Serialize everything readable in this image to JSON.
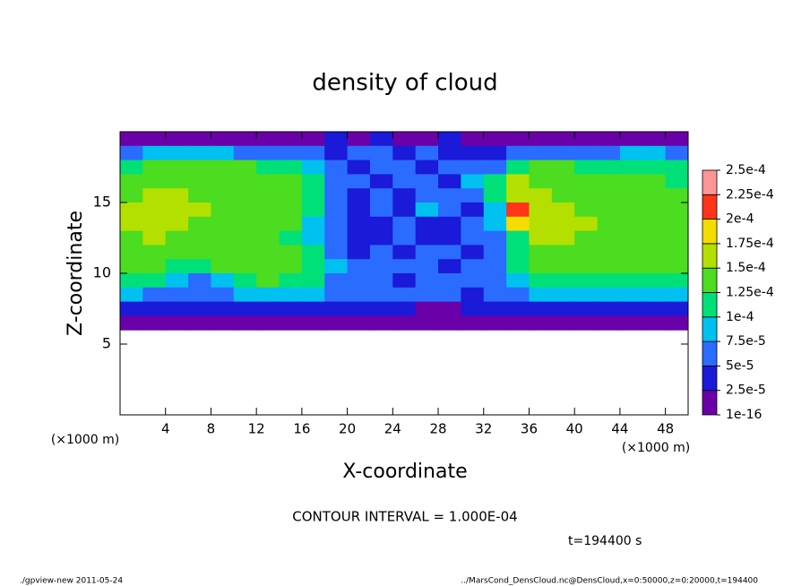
{
  "chart_data": {
    "type": "heatmap",
    "title": "density of cloud",
    "xlabel": "X-coordinate",
    "ylabel": "Z-coordinate",
    "x_unit": "(×1000 m)",
    "y_unit": "(×1000 m)",
    "annotation": "CONTOUR INTERVAL = 1.000E-04",
    "time_label": "t=194400 s",
    "footer_left": "./gpview-new  2011-05-24",
    "footer_right": "../MarsCond_DensCloud.nc@DensCloud,x=0:50000,z=0:20000,t=194400",
    "xlim": [
      0,
      50
    ],
    "ylim": [
      0,
      20
    ],
    "xticks": [
      4,
      8,
      12,
      16,
      20,
      24,
      28,
      32,
      36,
      40,
      44,
      48
    ],
    "yticks": [
      5,
      10,
      15
    ],
    "x": [
      1,
      3,
      5,
      7,
      9,
      11,
      13,
      15,
      17,
      19,
      21,
      23,
      25,
      27,
      29,
      31,
      33,
      35,
      37,
      39,
      41,
      43,
      45,
      47,
      49
    ],
    "z": [
      19.5,
      18.5,
      17.5,
      16.5,
      15.5,
      14.5,
      13.5,
      12.5,
      11.5,
      10.5,
      9.5,
      8.5,
      7.5,
      6.5
    ],
    "values": [
      [
        1e-05,
        1e-05,
        1e-05,
        1e-05,
        1e-05,
        1e-05,
        1e-05,
        1e-05,
        2e-05,
        3e-05,
        2e-05,
        3e-05,
        2e-05,
        2e-05,
        3e-05,
        2e-05,
        1e-05,
        1e-05,
        1e-05,
        1e-05,
        1e-05,
        1e-05,
        1e-05,
        1e-05,
        1e-05
      ],
      [
        6e-05,
        8e-05,
        9e-05,
        9e-05,
        8e-05,
        7e-05,
        6e-05,
        6e-05,
        5e-05,
        4e-05,
        5e-05,
        6e-05,
        4e-05,
        5e-05,
        3e-05,
        4e-05,
        4e-05,
        5e-05,
        5e-05,
        6e-05,
        6e-05,
        7e-05,
        8e-05,
        8e-05,
        7e-05
      ],
      [
        0.00012,
        0.00013,
        0.00013,
        0.00013,
        0.00013,
        0.000125,
        0.00012,
        0.00011,
        9e-05,
        5e-05,
        4e-05,
        6e-05,
        5e-05,
        4e-05,
        5e-05,
        6e-05,
        7e-05,
        0.00011,
        0.00013,
        0.00013,
        0.00012,
        0.00012,
        0.00011,
        0.00011,
        0.0001
      ],
      [
        0.00014,
        0.000145,
        0.000145,
        0.00014,
        0.00014,
        0.00014,
        0.000135,
        0.00013,
        0.00011,
        7e-05,
        5e-05,
        4e-05,
        6e-05,
        5e-05,
        4e-05,
        8e-05,
        0.00011,
        0.00015,
        0.000145,
        0.00014,
        0.00014,
        0.000135,
        0.00013,
        0.00013,
        0.00012
      ],
      [
        0.000145,
        0.00015,
        0.00015,
        0.000145,
        0.000145,
        0.00014,
        0.00014,
        0.000135,
        0.00012,
        6e-05,
        4e-05,
        5e-05,
        3e-05,
        6e-05,
        7e-05,
        5e-05,
        0.00012,
        0.00017,
        0.00015,
        0.000145,
        0.000145,
        0.00014,
        0.00014,
        0.000135,
        0.00013
      ],
      [
        0.00015,
        0.00015,
        0.00015,
        0.00015,
        0.000145,
        0.000145,
        0.00014,
        0.00014,
        0.00012,
        5e-05,
        3e-05,
        5e-05,
        4e-05,
        8e-05,
        5e-05,
        4e-05,
        9e-05,
        0.00021,
        0.000155,
        0.00015,
        0.000145,
        0.000145,
        0.00014,
        0.00014,
        0.000135
      ],
      [
        0.00015,
        0.00015,
        0.00015,
        0.000145,
        0.000145,
        0.000145,
        0.00014,
        0.000135,
        9e-05,
        6e-05,
        4e-05,
        3e-05,
        5e-05,
        4e-05,
        3e-05,
        5e-05,
        8e-05,
        0.00019,
        0.00016,
        0.00015,
        0.00015,
        0.000145,
        0.000145,
        0.00014,
        0.000135
      ],
      [
        0.000145,
        0.00015,
        0.000145,
        0.000145,
        0.00014,
        0.00014,
        0.000135,
        0.00012,
        8e-05,
        5e-05,
        3e-05,
        4e-05,
        6e-05,
        3e-05,
        4e-05,
        5e-05,
        6e-05,
        0.00011,
        0.00015,
        0.00015,
        0.000145,
        0.000145,
        0.00014,
        0.00014,
        0.000135
      ],
      [
        0.000145,
        0.000145,
        0.00014,
        0.000135,
        0.000135,
        0.000135,
        0.000135,
        0.00013,
        0.00011,
        7e-05,
        4e-05,
        5e-05,
        3e-05,
        6e-05,
        5e-05,
        4e-05,
        7e-05,
        0.0001,
        0.00014,
        0.000145,
        0.00014,
        0.00014,
        0.00014,
        0.000135,
        0.00013
      ],
      [
        0.00014,
        0.00014,
        0.00012,
        0.0001,
        0.00013,
        0.000135,
        0.00013,
        0.00013,
        0.00012,
        8e-05,
        5e-05,
        6e-05,
        5e-05,
        7e-05,
        4e-05,
        6e-05,
        5e-05,
        0.0001,
        0.000135,
        0.00014,
        0.00014,
        0.000135,
        0.000135,
        0.00013,
        0.00013
      ],
      [
        0.00012,
        0.00011,
        8e-05,
        6e-05,
        9e-05,
        0.00012,
        0.000125,
        0.00012,
        0.0001,
        6e-05,
        5e-05,
        6e-05,
        4e-05,
        5e-05,
        6e-05,
        5e-05,
        6e-05,
        8e-05,
        0.00011,
        0.00012,
        0.00012,
        0.00012,
        0.00012,
        0.00012,
        0.00012
      ],
      [
        8e-05,
        7e-05,
        6e-05,
        5e-05,
        6e-05,
        8e-05,
        8e-05,
        8e-05,
        8e-05,
        7e-05,
        6e-05,
        7e-05,
        5e-05,
        6e-05,
        5e-05,
        4e-05,
        6e-05,
        7e-05,
        8e-05,
        8e-05,
        8e-05,
        8e-05,
        8e-05,
        8e-05,
        8e-05
      ],
      [
        4e-05,
        4e-05,
        3e-05,
        3e-05,
        4e-05,
        4e-05,
        4e-05,
        4e-05,
        4e-05,
        4e-05,
        4e-05,
        4e-05,
        3e-05,
        2e-05,
        2e-05,
        4e-05,
        4e-05,
        4e-05,
        4e-05,
        4e-05,
        4e-05,
        4e-05,
        4e-05,
        4e-05,
        4e-05
      ],
      [
        1e-05,
        1e-05,
        1e-05,
        1e-05,
        1e-05,
        1e-05,
        1e-05,
        1e-05,
        1e-05,
        1e-05,
        1e-05,
        1e-05,
        1e-05,
        1e-05,
        1e-05,
        1e-05,
        1e-05,
        1e-05,
        1e-05,
        1e-05,
        1e-05,
        1e-05,
        1e-05,
        1e-05,
        1e-05
      ]
    ],
    "levels": [
      {
        "value": 1e-16,
        "label": "1e-16"
      },
      {
        "value": 2.5e-05,
        "label": "2.5e-5"
      },
      {
        "value": 5e-05,
        "label": "5e-5"
      },
      {
        "value": 7.5e-05,
        "label": "7.5e-5"
      },
      {
        "value": 0.0001,
        "label": "1e-4"
      },
      {
        "value": 0.000125,
        "label": "1.25e-4"
      },
      {
        "value": 0.00015,
        "label": "1.5e-4"
      },
      {
        "value": 0.000175,
        "label": "1.75e-4"
      },
      {
        "value": 0.0002,
        "label": "2e-4"
      },
      {
        "value": 0.000225,
        "label": "2.25e-4"
      },
      {
        "value": 0.00025,
        "label": "2.5e-4"
      }
    ],
    "colors": [
      "#6a00a8",
      "#1a1ad8",
      "#2a6cff",
      "#00c0f0",
      "#00e078",
      "#4cdc20",
      "#b4e000",
      "#f4dc00",
      "#ff3418",
      "#ff9494"
    ]
  }
}
